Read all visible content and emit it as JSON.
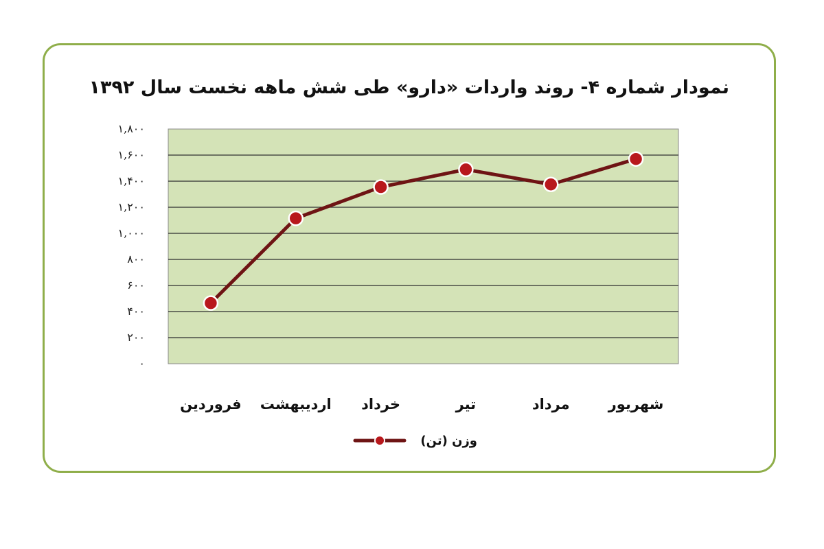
{
  "chart_data": {
    "type": "line",
    "title": "نمودار شماره ۴- روند واردات «دارو» طی شش ماهه نخست سال ۱۳۹۲",
    "categories": [
      "فروردین",
      "اردیبهشت",
      "خرداد",
      "تیر",
      "مرداد",
      "شهریور"
    ],
    "series": [
      {
        "name": "وزن (تن)",
        "values": [
          465,
          1115,
          1355,
          1490,
          1375,
          1570
        ]
      }
    ],
    "ylim": [
      0,
      1800
    ],
    "yticks": [
      0,
      200,
      400,
      600,
      800,
      1000,
      1200,
      1400,
      1600,
      1800
    ],
    "ytick_labels": [
      "۰",
      "۲۰۰",
      "۴۰۰",
      "۶۰۰",
      "۸۰۰",
      "۱,۰۰۰",
      "۱,۲۰۰",
      "۱,۴۰۰",
      "۱,۶۰۰",
      "۱,۸۰۰"
    ],
    "grid": true,
    "legend": "bottom",
    "colors": {
      "line": "#6e1414",
      "marker": "#b8181c",
      "plot_bg": "#d4e3b7",
      "grid": "#2f2f2f",
      "frame": "#8fae4a"
    }
  }
}
